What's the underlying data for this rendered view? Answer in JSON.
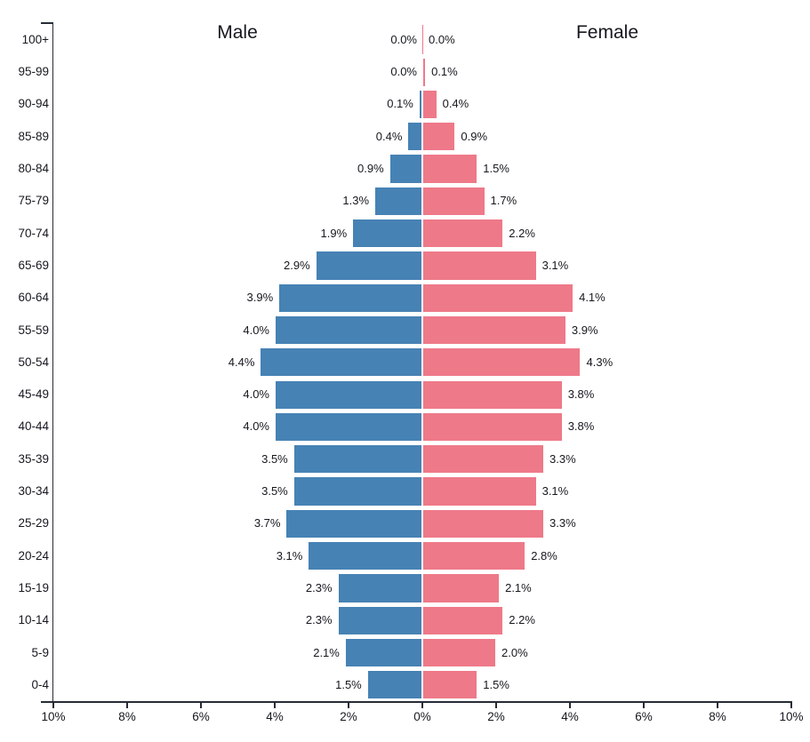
{
  "chart_data": {
    "type": "bar",
    "variant": "population-pyramid",
    "title_left": "Male",
    "title_right": "Female",
    "unit": "%",
    "categories": [
      "100+",
      "95-99",
      "90-94",
      "85-89",
      "80-84",
      "75-79",
      "70-74",
      "65-69",
      "60-64",
      "55-59",
      "50-54",
      "45-49",
      "40-44",
      "35-39",
      "30-34",
      "25-29",
      "20-24",
      "15-19",
      "10-14",
      "5-9",
      "0-4"
    ],
    "series": [
      {
        "name": "Male",
        "side": "left",
        "color": "#4682b4",
        "values": [
          0.0,
          0.0,
          0.1,
          0.4,
          0.9,
          1.3,
          1.9,
          2.9,
          3.9,
          4.0,
          4.4,
          4.0,
          4.0,
          3.5,
          3.5,
          3.7,
          3.1,
          2.3,
          2.3,
          2.1,
          1.5
        ]
      },
      {
        "name": "Female",
        "side": "right",
        "color": "#ee7989",
        "values": [
          0.0,
          0.1,
          0.4,
          0.9,
          1.5,
          1.7,
          2.2,
          3.1,
          4.1,
          3.9,
          4.3,
          3.8,
          3.8,
          3.3,
          3.1,
          3.3,
          2.8,
          2.1,
          2.2,
          2.0,
          1.5
        ]
      }
    ],
    "value_labels_shown": true,
    "x_axis": {
      "tick_labels": [
        "10%",
        "8%",
        "6%",
        "4%",
        "2%",
        "0%",
        "2%",
        "4%",
        "6%",
        "8%",
        "10%"
      ],
      "range_each_side": [
        0,
        10
      ]
    },
    "legend_position": "none",
    "grid": false,
    "colors": {
      "male": "#4682b4",
      "female": "#ee7989",
      "axis": "#262b36",
      "text": "#15181e",
      "background": "#ffffff"
    }
  }
}
